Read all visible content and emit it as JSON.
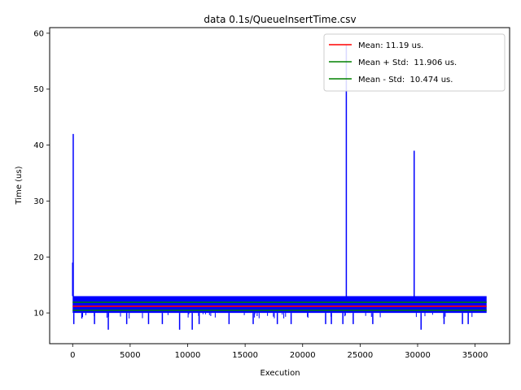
{
  "chart_data": {
    "type": "line",
    "title": "data 0.1s/QueueInsertTime.csv",
    "xlabel": "Execution",
    "ylabel": "Time (us)",
    "xlim": [
      -2000,
      38000
    ],
    "ylim": [
      4.5,
      61
    ],
    "xticks": [
      0,
      5000,
      10000,
      15000,
      20000,
      25000,
      30000,
      35000
    ],
    "yticks": [
      10,
      20,
      30,
      40,
      50,
      60
    ],
    "grid": false,
    "legend_position": "top-right",
    "n_points": 36000,
    "series": [
      {
        "name": "",
        "color": "#0000ff",
        "baseline": [
          10,
          13
        ],
        "spikes": [
          {
            "x": 0,
            "y": 19
          },
          {
            "x": 50,
            "y": 42
          },
          {
            "x": 100,
            "y": 8
          },
          {
            "x": 800,
            "y": 9
          },
          {
            "x": 1900,
            "y": 8
          },
          {
            "x": 3100,
            "y": 7
          },
          {
            "x": 4700,
            "y": 8
          },
          {
            "x": 6600,
            "y": 8
          },
          {
            "x": 7800,
            "y": 8
          },
          {
            "x": 9300,
            "y": 7
          },
          {
            "x": 10400,
            "y": 7
          },
          {
            "x": 11000,
            "y": 8
          },
          {
            "x": 13600,
            "y": 8
          },
          {
            "x": 15700,
            "y": 8
          },
          {
            "x": 17800,
            "y": 8
          },
          {
            "x": 19000,
            "y": 8
          },
          {
            "x": 22000,
            "y": 8
          },
          {
            "x": 22500,
            "y": 8
          },
          {
            "x": 23500,
            "y": 8
          },
          {
            "x": 23800,
            "y": 58
          },
          {
            "x": 24400,
            "y": 8
          },
          {
            "x": 26100,
            "y": 8
          },
          {
            "x": 29700,
            "y": 39
          },
          {
            "x": 30300,
            "y": 7
          },
          {
            "x": 32300,
            "y": 8
          },
          {
            "x": 33900,
            "y": 8
          },
          {
            "x": 34400,
            "y": 8
          }
        ]
      },
      {
        "name": "Mean: 11.19 us.",
        "color": "#ff0000",
        "y": 11.19,
        "x_range": [
          0,
          36000
        ]
      },
      {
        "name": "Mean + Std:  11.906 us.",
        "color": "#008000",
        "y": 11.906,
        "x_range": [
          0,
          36000
        ]
      },
      {
        "name": "Mean - Std:  10.474 us.",
        "color": "#008000",
        "y": 10.474,
        "x_range": [
          0,
          36000
        ]
      }
    ]
  }
}
